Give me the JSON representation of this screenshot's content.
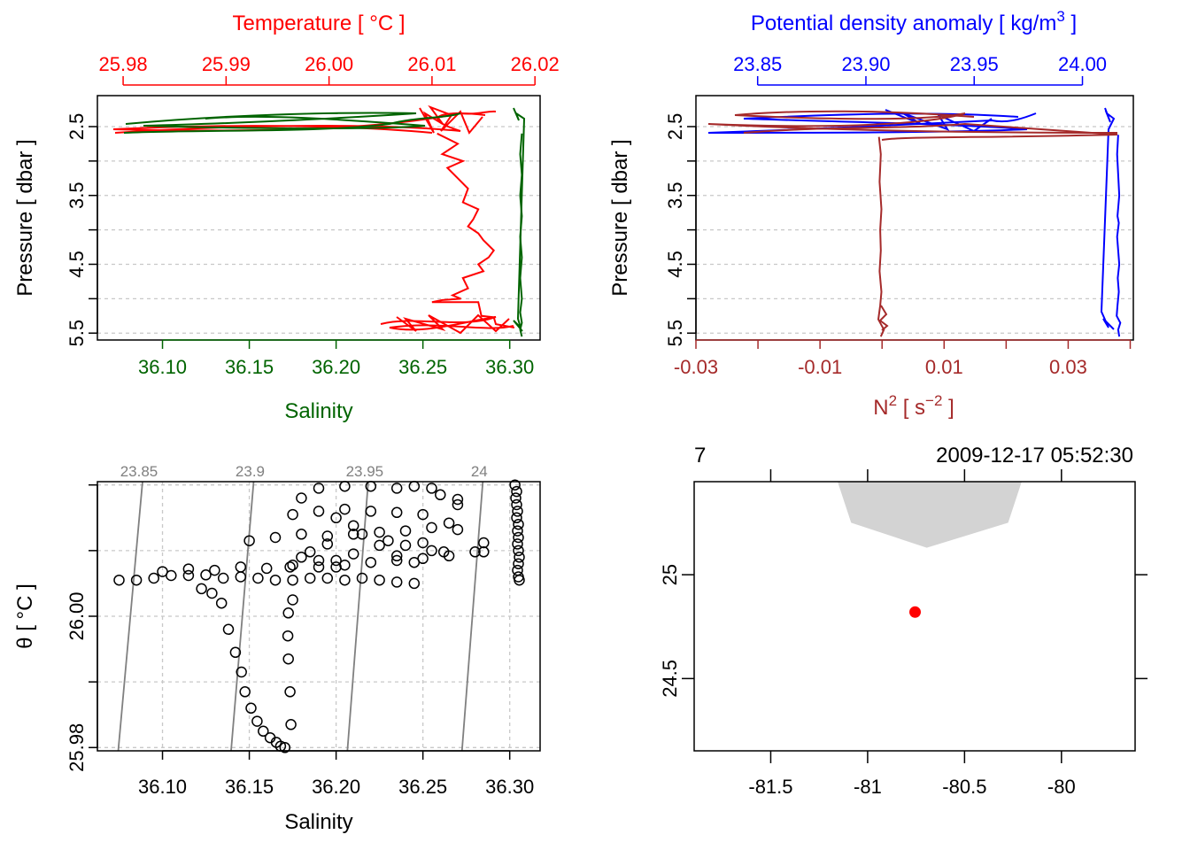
{
  "chart_data": [
    {
      "type": "line",
      "panel": "temperature-salinity-profile",
      "top_axis_label": "Temperature [ °C ]",
      "top_ticks": [
        "25.98",
        "25.99",
        "26.00",
        "26.01",
        "26.02"
      ],
      "top_range": [
        25.9775,
        26.0205
      ],
      "bottom_axis_label": "Salinity",
      "bottom_ticks": [
        "36.10",
        "36.15",
        "36.20",
        "36.25",
        "36.30"
      ],
      "bottom_range": [
        36.0625,
        36.3175
      ],
      "y_axis_label": "Pressure [ dbar ]",
      "y_ticks": [
        "2.5",
        "3.5",
        "4.5",
        "5.5"
      ],
      "y_range": [
        2.05,
        5.6
      ],
      "y_grid": [
        2.5,
        3.0,
        3.5,
        4.0,
        4.5,
        5.0,
        5.5
      ],
      "grid": true,
      "series": [
        {
          "color": "#ff0000",
          "axis": "top",
          "x": [
            26.0105,
            26.0125,
            26.011,
            26.013,
            26.0115,
            26.0125,
            26.0135,
            26.013,
            26.0145,
            26.014,
            26.0135,
            26.0145,
            26.015,
            26.016,
            26.0155,
            26.0145,
            26.015,
            26.013,
            26.0135,
            26.012,
            26.0128,
            26.011,
            26.01,
            26.0145,
            26.0148,
            26.016,
            26.0162,
            26.018
          ],
          "y": [
            2.6,
            2.75,
            2.9,
            3.0,
            3.1,
            3.25,
            3.4,
            3.6,
            3.7,
            3.85,
            3.95,
            4.05,
            4.15,
            4.3,
            4.4,
            4.5,
            4.6,
            4.7,
            4.85,
            4.95,
            5.0,
            5.02,
            5.05,
            5.05,
            5.25,
            5.27,
            5.37,
            5.42
          ]
        },
        {
          "color": "#006400",
          "axis": "bottom",
          "x": [
            36.307,
            36.306,
            36.307,
            36.306,
            36.307,
            36.306,
            36.307,
            36.306,
            36.307,
            36.306,
            36.307,
            36.306,
            36.307
          ],
          "y": [
            2.6,
            2.9,
            3.2,
            3.5,
            3.8,
            4.1,
            4.4,
            4.7,
            5.0,
            5.2,
            5.35,
            5.45,
            5.55
          ]
        }
      ]
    },
    {
      "type": "line",
      "panel": "density-n2-profile",
      "top_axis_label": "Potential density anomaly [ kg/m",
      "top_axis_label_sup": "3",
      "top_axis_label_end": " ]",
      "top_ticks": [
        "23.85",
        "23.90",
        "23.95",
        "24.00"
      ],
      "top_range": [
        23.8215,
        24.0235
      ],
      "bottom_axis_label": "N",
      "bottom_axis_label_sup": "2",
      "bottom_axis_label_mid": " [ s",
      "bottom_axis_label_sup2": "−2",
      "bottom_axis_label_end": " ]",
      "bottom_ticks": [
        "-0.03",
        "-0.01",
        "0.01",
        "0.03"
      ],
      "bottom_minor_ticks": [
        -0.03,
        -0.02,
        -0.01,
        0.0,
        0.01,
        0.02,
        0.03,
        0.04
      ],
      "bottom_range": [
        -0.03,
        0.0405
      ],
      "y_axis_label": "Pressure [ dbar ]",
      "y_ticks": [
        "2.5",
        "3.5",
        "4.5",
        "5.5"
      ],
      "y_range": [
        2.05,
        5.6
      ],
      "grid": true,
      "series": [
        {
          "color": "#0000ff",
          "axis": "top",
          "x": [
            24.0165,
            24.016,
            24.0165,
            24.017,
            24.0162,
            24.0168,
            24.016,
            24.0165,
            24.017,
            24.0163,
            24.0168,
            24.0162,
            24.0158,
            24.0175,
            24.0165,
            24.017
          ],
          "y": [
            2.62,
            2.9,
            3.2,
            3.5,
            3.8,
            3.9,
            4.1,
            4.3,
            4.5,
            4.7,
            4.9,
            5.1,
            5.25,
            5.35,
            5.45,
            5.55
          ]
        },
        {
          "color": "#a52a2a",
          "axis": "bottom",
          "x": [
            -0.0005,
            -0.0002,
            -0.0004,
            -0.0001,
            -0.0003,
            -0.0002,
            -0.0004,
            -0.0001,
            -0.0003,
            -0.0006,
            0.0003,
            -0.0002
          ],
          "y": [
            2.65,
            2.9,
            3.3,
            3.7,
            4.0,
            4.3,
            4.6,
            4.9,
            5.1,
            5.3,
            5.45,
            5.55
          ]
        }
      ]
    },
    {
      "type": "scatter",
      "panel": "ts-diagram",
      "xlabel": "Salinity",
      "ylabel": "θ [ °C ]",
      "x_ticks": [
        "36.10",
        "36.15",
        "36.20",
        "36.25",
        "36.30"
      ],
      "x_range": [
        36.0625,
        36.3175
      ],
      "y_ticks": [
        "25.98",
        "26.00"
      ],
      "y_range": [
        25.9795,
        26.0205
      ],
      "y_grid": [
        25.98,
        25.99,
        26.0,
        26.01,
        26.02
      ],
      "isopycnal_labels": [
        "23.85",
        "23.9",
        "23.95",
        "24"
      ],
      "isopycnals": [
        {
          "x0": 36.0745,
          "y0": 25.9795,
          "x1": 36.0885,
          "y1": 26.0205
        },
        {
          "x0": 36.1395,
          "y0": 25.9795,
          "x1": 36.1525,
          "y1": 26.0205
        },
        {
          "x0": 36.2065,
          "y0": 25.9795,
          "x1": 36.2185,
          "y1": 26.0205
        },
        {
          "x0": 36.2725,
          "y0": 25.9795,
          "x1": 36.2845,
          "y1": 26.0205
        }
      ],
      "points": [
        [
          36.1705,
          25.98
        ],
        [
          36.168,
          25.9802
        ],
        [
          36.1655,
          25.9808
        ],
        [
          36.162,
          25.9815
        ],
        [
          36.158,
          25.9825
        ],
        [
          36.1545,
          25.984
        ],
        [
          36.151,
          25.986
        ],
        [
          36.1475,
          25.9885
        ],
        [
          36.1455,
          25.9915
        ],
        [
          36.142,
          25.9945
        ],
        [
          36.138,
          25.998
        ],
        [
          36.134,
          26.002
        ],
        [
          36.1285,
          26.0035
        ],
        [
          36.1225,
          26.0042
        ],
        [
          36.174,
          25.9835
        ],
        [
          36.1735,
          25.9885
        ],
        [
          36.1725,
          25.9935
        ],
        [
          36.1722,
          25.997
        ],
        [
          36.1725,
          26.0005
        ],
        [
          36.175,
          26.0025
        ],
        [
          36.1735,
          26.0075
        ],
        [
          36.18,
          26.009
        ],
        [
          36.2,
          26.0075
        ],
        [
          36.075,
          26.0055
        ],
        [
          36.085,
          26.0055
        ],
        [
          36.095,
          26.0058
        ],
        [
          36.105,
          26.0062
        ],
        [
          36.115,
          26.0062
        ],
        [
          36.125,
          26.0063
        ],
        [
          36.135,
          26.0058
        ],
        [
          36.145,
          26.006
        ],
        [
          36.155,
          26.0058
        ],
        [
          36.165,
          26.0055
        ],
        [
          36.175,
          26.0055
        ],
        [
          36.185,
          26.0058
        ],
        [
          36.195,
          26.0058
        ],
        [
          36.205,
          26.0055
        ],
        [
          36.215,
          26.0058
        ],
        [
          36.225,
          26.0055
        ],
        [
          36.235,
          26.0052
        ],
        [
          36.245,
          26.005
        ],
        [
          36.1,
          26.0068
        ],
        [
          36.115,
          26.0072
        ],
        [
          36.13,
          26.007
        ],
        [
          36.145,
          26.0075
        ],
        [
          36.16,
          26.0073
        ],
        [
          36.175,
          26.0078
        ],
        [
          36.19,
          26.0075
        ],
        [
          36.205,
          26.0078
        ],
        [
          36.22,
          26.0082
        ],
        [
          36.235,
          26.0085
        ],
        [
          36.25,
          26.0088
        ],
        [
          36.265,
          26.0092
        ],
        [
          36.28,
          26.0098
        ],
        [
          36.15,
          26.0115
        ],
        [
          36.165,
          26.012
        ],
        [
          36.18,
          26.0125
        ],
        [
          36.195,
          26.0122
        ],
        [
          36.21,
          26.0125
        ],
        [
          36.225,
          26.0128
        ],
        [
          36.24,
          26.013
        ],
        [
          36.255,
          26.0135
        ],
        [
          36.27,
          26.0132
        ],
        [
          36.285,
          26.0098
        ],
        [
          36.175,
          26.0155
        ],
        [
          36.19,
          26.016
        ],
        [
          36.205,
          26.0163
        ],
        [
          36.22,
          26.016
        ],
        [
          36.235,
          26.0158
        ],
        [
          36.25,
          26.0155
        ],
        [
          36.265,
          26.0142
        ],
        [
          36.285,
          26.0112
        ],
        [
          36.27,
          26.017
        ],
        [
          36.18,
          26.018
        ],
        [
          36.19,
          26.0195
        ],
        [
          36.205,
          26.0198
        ],
        [
          36.22,
          26.0198
        ],
        [
          36.235,
          26.0195
        ],
        [
          36.245,
          26.0198
        ],
        [
          36.255,
          26.0195
        ],
        [
          36.26,
          26.0185
        ],
        [
          36.27,
          26.0178
        ],
        [
          36.2,
          26.0085
        ],
        [
          36.21,
          26.0095
        ],
        [
          36.195,
          26.011
        ],
        [
          36.185,
          26.0098
        ],
        [
          36.19,
          26.0085
        ],
        [
          36.23,
          26.0115
        ],
        [
          36.24,
          26.0108
        ],
        [
          36.25,
          26.0112
        ],
        [
          36.2,
          26.015
        ],
        [
          36.21,
          26.0138
        ],
        [
          36.215,
          26.0125
        ],
        [
          36.225,
          26.0108
        ],
        [
          36.235,
          26.0092
        ],
        [
          36.245,
          26.0082
        ],
        [
          36.255,
          26.01
        ],
        [
          36.262,
          26.0098
        ],
        [
          36.303,
          26.02
        ],
        [
          36.304,
          26.019
        ],
        [
          36.3035,
          26.018
        ],
        [
          36.304,
          26.017
        ],
        [
          36.3045,
          26.016
        ],
        [
          36.304,
          26.015
        ],
        [
          36.305,
          26.014
        ],
        [
          36.3045,
          26.013
        ],
        [
          36.305,
          26.012
        ],
        [
          36.3045,
          26.011
        ],
        [
          36.305,
          26.01
        ],
        [
          36.3055,
          26.009
        ],
        [
          36.305,
          26.008
        ],
        [
          36.3045,
          26.007
        ],
        [
          36.305,
          26.006
        ],
        [
          36.3055,
          26.0055
        ]
      ]
    },
    {
      "type": "map",
      "panel": "station-map",
      "top_left_label": "7",
      "top_right_label": "2009-12-17 05:52:30",
      "x_ticks": [
        "-81.5",
        "-81",
        "-80.5",
        "-80"
      ],
      "x_range": [
        -81.895,
        -79.62
      ],
      "y_ticks": [
        "25",
        "24.5"
      ],
      "y_range": [
        24.152,
        25.448
      ],
      "land_color": "#d3d3d3",
      "land_polygon": [
        [
          -81.155,
          25.448
        ],
        [
          -81.085,
          25.25
        ],
        [
          -80.695,
          25.13
        ],
        [
          -80.275,
          25.25
        ],
        [
          -80.205,
          25.448
        ]
      ],
      "station": {
        "lon": -80.755,
        "lat": 24.82,
        "color": "#ff0000"
      }
    }
  ]
}
